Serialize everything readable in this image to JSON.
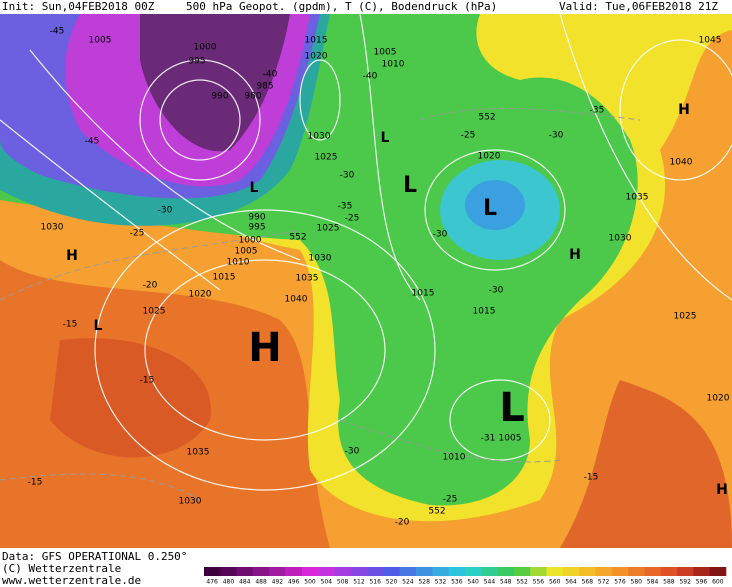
{
  "header": {
    "init": "Init: Sun,04FEB2018 00Z",
    "title": "500 hPa Geopot. (gpdm), T (C), Bodendruck (hPa)",
    "valid": "Valid: Tue,06FEB2018 21Z"
  },
  "map": {
    "labels": [
      "1005",
      "1000",
      "995",
      "990",
      "980",
      "985",
      "1015",
      "1020",
      "1005",
      "1010",
      "-40",
      "-40",
      "-45",
      "-45",
      "1030",
      "1025",
      "L",
      "L",
      "L",
      "552",
      "-25",
      "-35",
      "-30",
      "1020",
      "1045",
      "H",
      "1040",
      "1035",
      "1030",
      "L",
      "H",
      "-30",
      "-30",
      "-35",
      "990",
      "995",
      "1000",
      "1005",
      "1010",
      "552",
      "1025",
      "-25",
      "-30",
      "1030",
      "H",
      "-25",
      "1030",
      "1035",
      "1040",
      "1015",
      "1020",
      "-20",
      "1025",
      "-15",
      "L",
      "H",
      "1015",
      "-30",
      "1015",
      "1025",
      "-15",
      "1020",
      "L",
      "-30",
      "-31",
      "1005",
      "1010",
      "1035",
      "-15",
      "1030",
      "-25",
      "552",
      "-20",
      "-15",
      "H"
    ]
  },
  "footer": {
    "data": "Data: GFS OPERATIONAL 0.250°",
    "copyright": "(C) Wetterzentrale",
    "url": "www.wetterzentrale.de"
  },
  "colorbar": {
    "ticks": [
      476,
      480,
      484,
      488,
      492,
      496,
      500,
      504,
      508,
      512,
      516,
      520,
      524,
      528,
      532,
      536,
      540,
      544,
      548,
      552,
      556,
      560,
      564,
      568,
      572,
      576,
      580,
      584,
      588,
      592,
      596,
      600
    ]
  }
}
